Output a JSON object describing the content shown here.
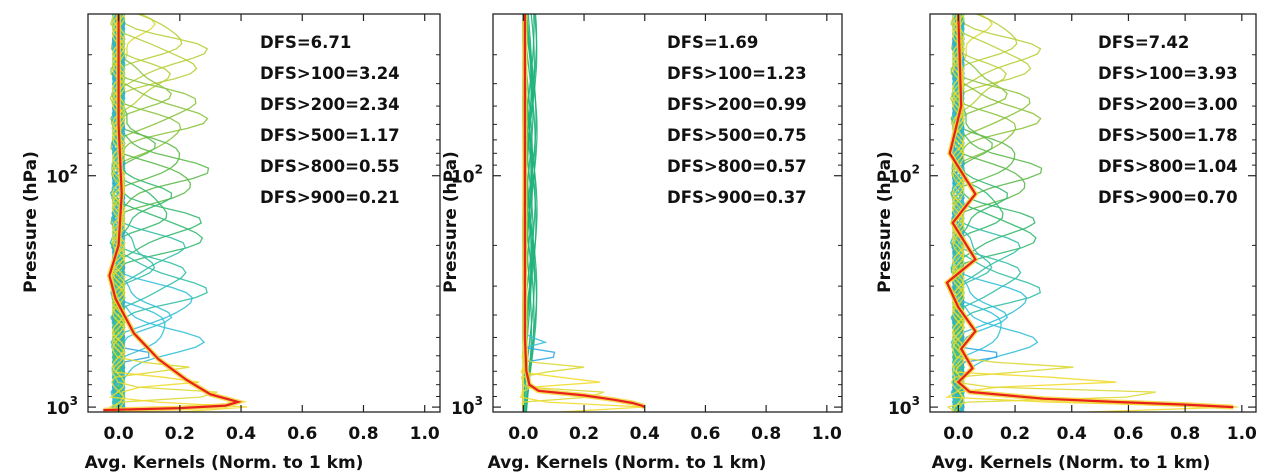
{
  "chart_data": [
    {
      "type": "line",
      "ylabel": "Pressure (hPa)",
      "xlabel": "Avg. Kernels (Norm. to 1 km)",
      "y_scale": "log",
      "y_inverted": true,
      "xlim": [
        -0.1,
        1.05
      ],
      "ylim": [
        1050,
        20
      ],
      "x_ticks": [
        0.0,
        0.2,
        0.4,
        0.6,
        0.8,
        1.0
      ],
      "x_tick_labels": [
        "0.0",
        "0.2",
        "0.4",
        "0.6",
        "0.8",
        "1.0"
      ],
      "y_ticks": [
        100,
        1000
      ],
      "y_tick_base": "10",
      "y_tick_exponents": [
        "2",
        "3"
      ],
      "annotations": [
        "DFS=6.71",
        "DFS>100=3.24",
        "DFS>200=2.34",
        "DFS>500=1.17",
        "DFS>800=0.55",
        "DFS>900=0.21"
      ],
      "highlight_series": {
        "color": "#e8201a",
        "points": [
          [
            0.0,
            20
          ],
          [
            0.0,
            60
          ],
          [
            0.01,
            120
          ],
          [
            0.0,
            200
          ],
          [
            -0.03,
            270
          ],
          [
            -0.01,
            340
          ],
          [
            0.05,
            480
          ],
          [
            0.13,
            620
          ],
          [
            0.22,
            760
          ],
          [
            0.3,
            880
          ],
          [
            0.39,
            950
          ],
          [
            0.35,
            985
          ],
          [
            0.2,
            1010
          ],
          [
            -0.05,
            1030
          ]
        ]
      },
      "kernel_count": 30,
      "kernel_peak_max": 0.43
    },
    {
      "type": "line",
      "ylabel": "Pressure (hPa)",
      "xlabel": "Avg. Kernels (Norm. to 1 km)",
      "y_scale": "log",
      "y_inverted": true,
      "xlim": [
        -0.1,
        1.05
      ],
      "ylim": [
        1050,
        20
      ],
      "x_ticks": [
        0.0,
        0.2,
        0.4,
        0.6,
        0.8,
        1.0
      ],
      "x_tick_labels": [
        "0.0",
        "0.2",
        "0.4",
        "0.6",
        "0.8",
        "1.0"
      ],
      "y_ticks": [
        100,
        1000
      ],
      "y_tick_base": "10",
      "y_tick_exponents": [
        "2",
        "3"
      ],
      "annotations": [
        "DFS=1.69",
        "DFS>100=1.23",
        "DFS>200=0.99",
        "DFS>500=0.75",
        "DFS>800=0.57",
        "DFS>900=0.37"
      ],
      "highlight_series": {
        "color": "#e8201a",
        "points": [
          [
            0.005,
            20
          ],
          [
            0.005,
            200
          ],
          [
            0.005,
            500
          ],
          [
            0.01,
            700
          ],
          [
            0.02,
            800
          ],
          [
            0.05,
            850
          ],
          [
            0.2,
            890
          ],
          [
            0.3,
            930
          ],
          [
            0.36,
            960
          ],
          [
            0.39,
            985
          ],
          [
            0.4,
            1000
          ]
        ]
      },
      "kernel_count": 30,
      "kernel_peak_max": 0.4
    },
    {
      "type": "line",
      "ylabel": "Pressure (hPa)",
      "xlabel": "Avg. Kernels (Norm. to 1 km)",
      "y_scale": "log",
      "y_inverted": true,
      "xlim": [
        -0.1,
        1.05
      ],
      "ylim": [
        1050,
        20
      ],
      "x_ticks": [
        0.0,
        0.2,
        0.4,
        0.6,
        0.8,
        1.0
      ],
      "x_tick_labels": [
        "0.0",
        "0.2",
        "0.4",
        "0.6",
        "0.8",
        "1.0"
      ],
      "y_ticks": [
        100,
        1000
      ],
      "y_tick_base": "10",
      "y_tick_exponents": [
        "2",
        "3"
      ],
      "annotations": [
        "DFS=7.42",
        "DFS>100=3.93",
        "DFS>200=3.00",
        "DFS>500=1.78",
        "DFS>800=1.04",
        "DFS>900=0.70"
      ],
      "highlight_series": {
        "color": "#e8201a",
        "points": [
          [
            0.0,
            20
          ],
          [
            0.01,
            50
          ],
          [
            -0.03,
            80
          ],
          [
            0.06,
            120
          ],
          [
            -0.02,
            160
          ],
          [
            0.06,
            230
          ],
          [
            -0.04,
            290
          ],
          [
            0.0,
            370
          ],
          [
            0.06,
            470
          ],
          [
            0.01,
            560
          ],
          [
            0.05,
            680
          ],
          [
            0.0,
            780
          ],
          [
            0.04,
            860
          ],
          [
            0.3,
            920
          ],
          [
            0.55,
            950
          ],
          [
            0.8,
            975
          ],
          [
            0.97,
            1000
          ]
        ]
      },
      "kernel_count": 30,
      "kernel_peak_max": 1.0
    }
  ]
}
